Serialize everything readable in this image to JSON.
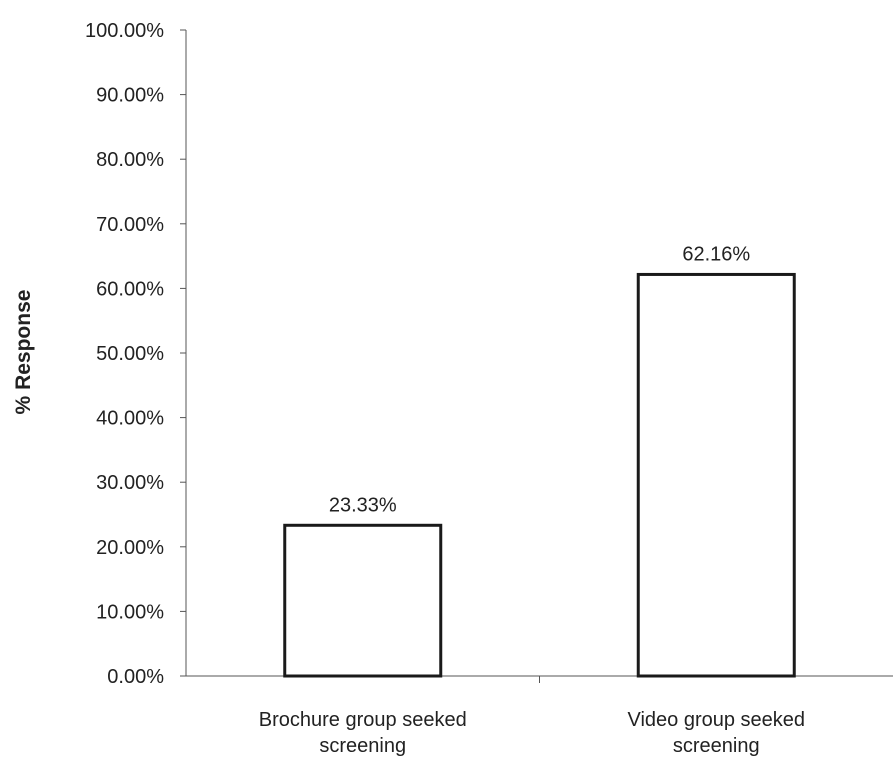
{
  "chart_data": {
    "type": "bar",
    "title": "",
    "xlabel": "",
    "ylabel": "% Response",
    "ylim": [
      0,
      100
    ],
    "yticks": [
      "0.00%",
      "10.00%",
      "20.00%",
      "30.00%",
      "40.00%",
      "50.00%",
      "60.00%",
      "70.00%",
      "80.00%",
      "90.00%",
      "100.00%"
    ],
    "categories": [
      [
        "Brochure group seeked",
        "screening"
      ],
      [
        "Video group seeked",
        "screening"
      ]
    ],
    "values": [
      23.33,
      62.16
    ],
    "value_labels": [
      "23.33%",
      "62.16%"
    ],
    "grid": false,
    "legend": "none",
    "colors": {
      "bar_fill": "#ffffff",
      "bar_stroke": "#1a1a1a",
      "axis": "#555555"
    }
  }
}
